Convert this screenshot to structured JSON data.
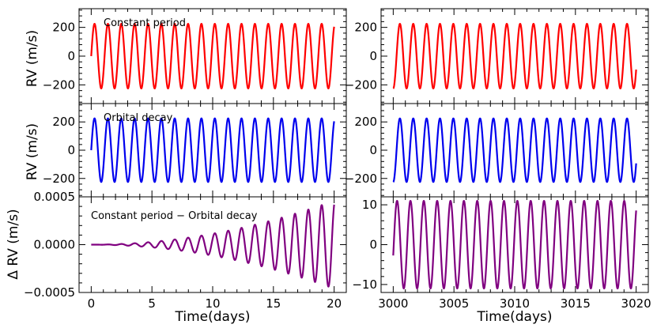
{
  "figure": {
    "xlabel_left": "Time(days)",
    "xlabel_right": "Time(days)",
    "ylabel_top": "RV (m/s)",
    "ylabel_middle": "RV (m/s)",
    "ylabel_bottom": "Δ RV (m/s)"
  },
  "chart_data": [
    {
      "id": "top-left",
      "type": "line",
      "annotation": "Constant period",
      "color": "#ff0000",
      "x_range": [
        0,
        20
      ],
      "ylim": [
        -330,
        330
      ],
      "yticks": [
        -200,
        0,
        200
      ],
      "ytick_labels": [
        "−200",
        "0",
        "200"
      ],
      "xticks": [
        0,
        5,
        10,
        15,
        20
      ],
      "series": [
        {
          "name": "Constant period",
          "amplitude": 225,
          "period_days": 1.1,
          "phase": 0
        }
      ]
    },
    {
      "id": "top-right",
      "type": "line",
      "annotation": "",
      "color": "#ff0000",
      "x_range": [
        3000,
        3020
      ],
      "ylim": [
        -330,
        330
      ],
      "yticks": [
        -200,
        0,
        200
      ],
      "ytick_labels": [
        "−200",
        "0",
        "200"
      ],
      "xticks": [
        3000,
        3005,
        3010,
        3015,
        3020
      ],
      "series": [
        {
          "name": "Constant period",
          "amplitude": 225,
          "period_days": 1.1,
          "phase": -1.571
        }
      ]
    },
    {
      "id": "middle-left",
      "type": "line",
      "annotation": "Orbital decay",
      "color": "#0000ee",
      "x_range": [
        0,
        20
      ],
      "ylim": [
        -330,
        330
      ],
      "yticks": [
        -200,
        0,
        200
      ],
      "ytick_labels": [
        "−200",
        "0",
        "200"
      ],
      "xticks": [
        0,
        5,
        10,
        15,
        20
      ],
      "series": [
        {
          "name": "Orbital decay",
          "amplitude": 225,
          "period_days": 1.1,
          "phase": 0
        }
      ]
    },
    {
      "id": "middle-right",
      "type": "line",
      "annotation": "",
      "color": "#0000ee",
      "x_range": [
        3000,
        3020
      ],
      "ylim": [
        -330,
        330
      ],
      "yticks": [
        -200,
        0,
        200
      ],
      "ytick_labels": [
        "−200",
        "0",
        "200"
      ],
      "xticks": [
        3000,
        3005,
        3010,
        3015,
        3020
      ],
      "series": [
        {
          "name": "Orbital decay",
          "amplitude": 225,
          "period_days": 1.1,
          "phase": -1.571
        }
      ]
    },
    {
      "id": "bottom-left",
      "type": "line",
      "annotation": "Constant period − Orbital decay",
      "color": "#800080",
      "x_range": [
        0,
        20
      ],
      "ylim": [
        -0.0005,
        0.0005
      ],
      "yticks": [
        -0.0005,
        0.0,
        0.0005
      ],
      "ytick_labels": [
        "−0.0005",
        "0.0000",
        "0.0005"
      ],
      "xticks": [
        0,
        5,
        10,
        15,
        20
      ],
      "xtick_labels": [
        "0",
        "5",
        "10",
        "15",
        "20"
      ],
      "series": [
        {
          "name": "Constant period − Orbital decay",
          "amplitude_growth": "quadratic",
          "amplitude_at_20": 0.00046,
          "period_days": 1.1,
          "phase": 0
        }
      ]
    },
    {
      "id": "bottom-right",
      "type": "line",
      "annotation": "",
      "color": "#800080",
      "x_range": [
        3000,
        3020
      ],
      "ylim": [
        -12,
        12
      ],
      "yticks": [
        -10,
        0,
        10
      ],
      "ytick_labels": [
        "−10",
        "0",
        "10"
      ],
      "xticks": [
        3000,
        3005,
        3010,
        3015,
        3020
      ],
      "xtick_labels": [
        "3000",
        "3005",
        "3010",
        "3015",
        "3020"
      ],
      "series": [
        {
          "name": "Constant period − Orbital decay",
          "amplitude": 11,
          "period_days": 1.1,
          "phase": -0.25
        }
      ]
    }
  ]
}
